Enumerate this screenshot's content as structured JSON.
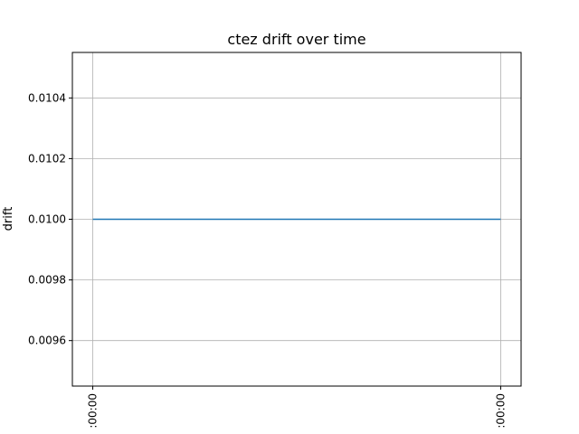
{
  "chart_data": {
    "type": "line",
    "title": "ctez drift over time",
    "xlabel": "",
    "ylabel": "drift",
    "x_tick_labels": [
      ":00:00",
      ":00:00"
    ],
    "y_ticks": [
      0.0096,
      0.0098,
      0.01,
      0.0102,
      0.0104
    ],
    "y_tick_labels": [
      "0.0096",
      "0.0098",
      "0.0100",
      "0.0102",
      "0.0104"
    ],
    "ylim": [
      0.00945,
      0.01055
    ],
    "x": [
      0,
      1
    ],
    "xlim": [
      -0.05,
      1.05
    ],
    "series": [
      {
        "values": [
          0.01,
          0.01
        ],
        "color": "#1f77b4"
      }
    ],
    "grid": true,
    "frame_color": "#000000",
    "grid_color": "#b0b0b0"
  }
}
